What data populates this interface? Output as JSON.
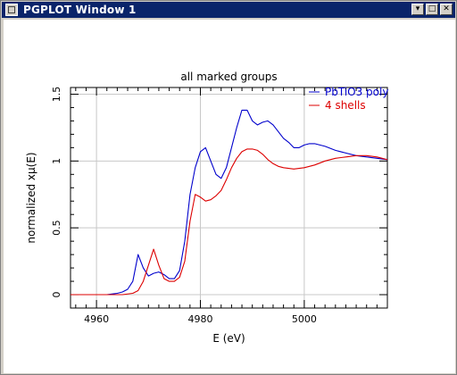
{
  "window": {
    "title": "PGPLOT Window 1",
    "buttons": [
      {
        "name": "minimize",
        "glyph": "▾"
      },
      {
        "name": "maximize",
        "glyph": "□"
      },
      {
        "name": "close",
        "glyph": "✕"
      }
    ]
  },
  "chart_data": {
    "type": "line",
    "title": "all marked groups",
    "xlabel": "E (eV)",
    "ylabel": "normalized xμ(E)",
    "xlim": [
      4955,
      5016
    ],
    "ylim": [
      -0.1,
      1.55
    ],
    "xticks": [
      4960,
      4980,
      5000
    ],
    "yticks": [
      0,
      0.5,
      1,
      1.5
    ],
    "grid": true,
    "legend_position": "top-right",
    "series": [
      {
        "name": "PbTiO3 poly",
        "color": "#0000cc",
        "points": [
          [
            4955,
            0.0
          ],
          [
            4960,
            0.0
          ],
          [
            4962,
            0.0
          ],
          [
            4964,
            0.01
          ],
          [
            4965,
            0.02
          ],
          [
            4966,
            0.04
          ],
          [
            4967,
            0.1
          ],
          [
            4968,
            0.3
          ],
          [
            4969,
            0.2
          ],
          [
            4970,
            0.14
          ],
          [
            4971,
            0.16
          ],
          [
            4972,
            0.17
          ],
          [
            4973,
            0.15
          ],
          [
            4974,
            0.12
          ],
          [
            4975,
            0.12
          ],
          [
            4976,
            0.18
          ],
          [
            4977,
            0.4
          ],
          [
            4978,
            0.75
          ],
          [
            4979,
            0.95
          ],
          [
            4980,
            1.07
          ],
          [
            4981,
            1.1
          ],
          [
            4982,
            1.0
          ],
          [
            4983,
            0.9
          ],
          [
            4984,
            0.87
          ],
          [
            4985,
            0.95
          ],
          [
            4986,
            1.1
          ],
          [
            4987,
            1.25
          ],
          [
            4988,
            1.38
          ],
          [
            4989,
            1.38
          ],
          [
            4990,
            1.3
          ],
          [
            4991,
            1.27
          ],
          [
            4992,
            1.29
          ],
          [
            4993,
            1.3
          ],
          [
            4994,
            1.27
          ],
          [
            4995,
            1.22
          ],
          [
            4996,
            1.17
          ],
          [
            4997,
            1.14
          ],
          [
            4998,
            1.1
          ],
          [
            4999,
            1.1
          ],
          [
            5000,
            1.12
          ],
          [
            5001,
            1.13
          ],
          [
            5002,
            1.13
          ],
          [
            5004,
            1.11
          ],
          [
            5006,
            1.08
          ],
          [
            5008,
            1.06
          ],
          [
            5010,
            1.04
          ],
          [
            5012,
            1.03
          ],
          [
            5014,
            1.02
          ],
          [
            5016,
            1.01
          ]
        ]
      },
      {
        "name": "4 shells",
        "color": "#dd0000",
        "points": [
          [
            4955,
            0.0
          ],
          [
            4962,
            0.0
          ],
          [
            4965,
            0.0
          ],
          [
            4967,
            0.01
          ],
          [
            4968,
            0.03
          ],
          [
            4969,
            0.1
          ],
          [
            4970,
            0.22
          ],
          [
            4971,
            0.34
          ],
          [
            4972,
            0.22
          ],
          [
            4973,
            0.12
          ],
          [
            4974,
            0.1
          ],
          [
            4975,
            0.1
          ],
          [
            4976,
            0.13
          ],
          [
            4977,
            0.25
          ],
          [
            4978,
            0.55
          ],
          [
            4979,
            0.75
          ],
          [
            4980,
            0.73
          ],
          [
            4981,
            0.7
          ],
          [
            4982,
            0.71
          ],
          [
            4983,
            0.74
          ],
          [
            4984,
            0.78
          ],
          [
            4985,
            0.86
          ],
          [
            4986,
            0.95
          ],
          [
            4987,
            1.02
          ],
          [
            4988,
            1.07
          ],
          [
            4989,
            1.09
          ],
          [
            4990,
            1.09
          ],
          [
            4991,
            1.08
          ],
          [
            4992,
            1.05
          ],
          [
            4993,
            1.01
          ],
          [
            4994,
            0.98
          ],
          [
            4995,
            0.96
          ],
          [
            4996,
            0.95
          ],
          [
            4998,
            0.94
          ],
          [
            5000,
            0.95
          ],
          [
            5002,
            0.97
          ],
          [
            5004,
            1.0
          ],
          [
            5006,
            1.02
          ],
          [
            5008,
            1.03
          ],
          [
            5010,
            1.04
          ],
          [
            5012,
            1.04
          ],
          [
            5014,
            1.03
          ],
          [
            5016,
            1.01
          ]
        ]
      }
    ]
  }
}
